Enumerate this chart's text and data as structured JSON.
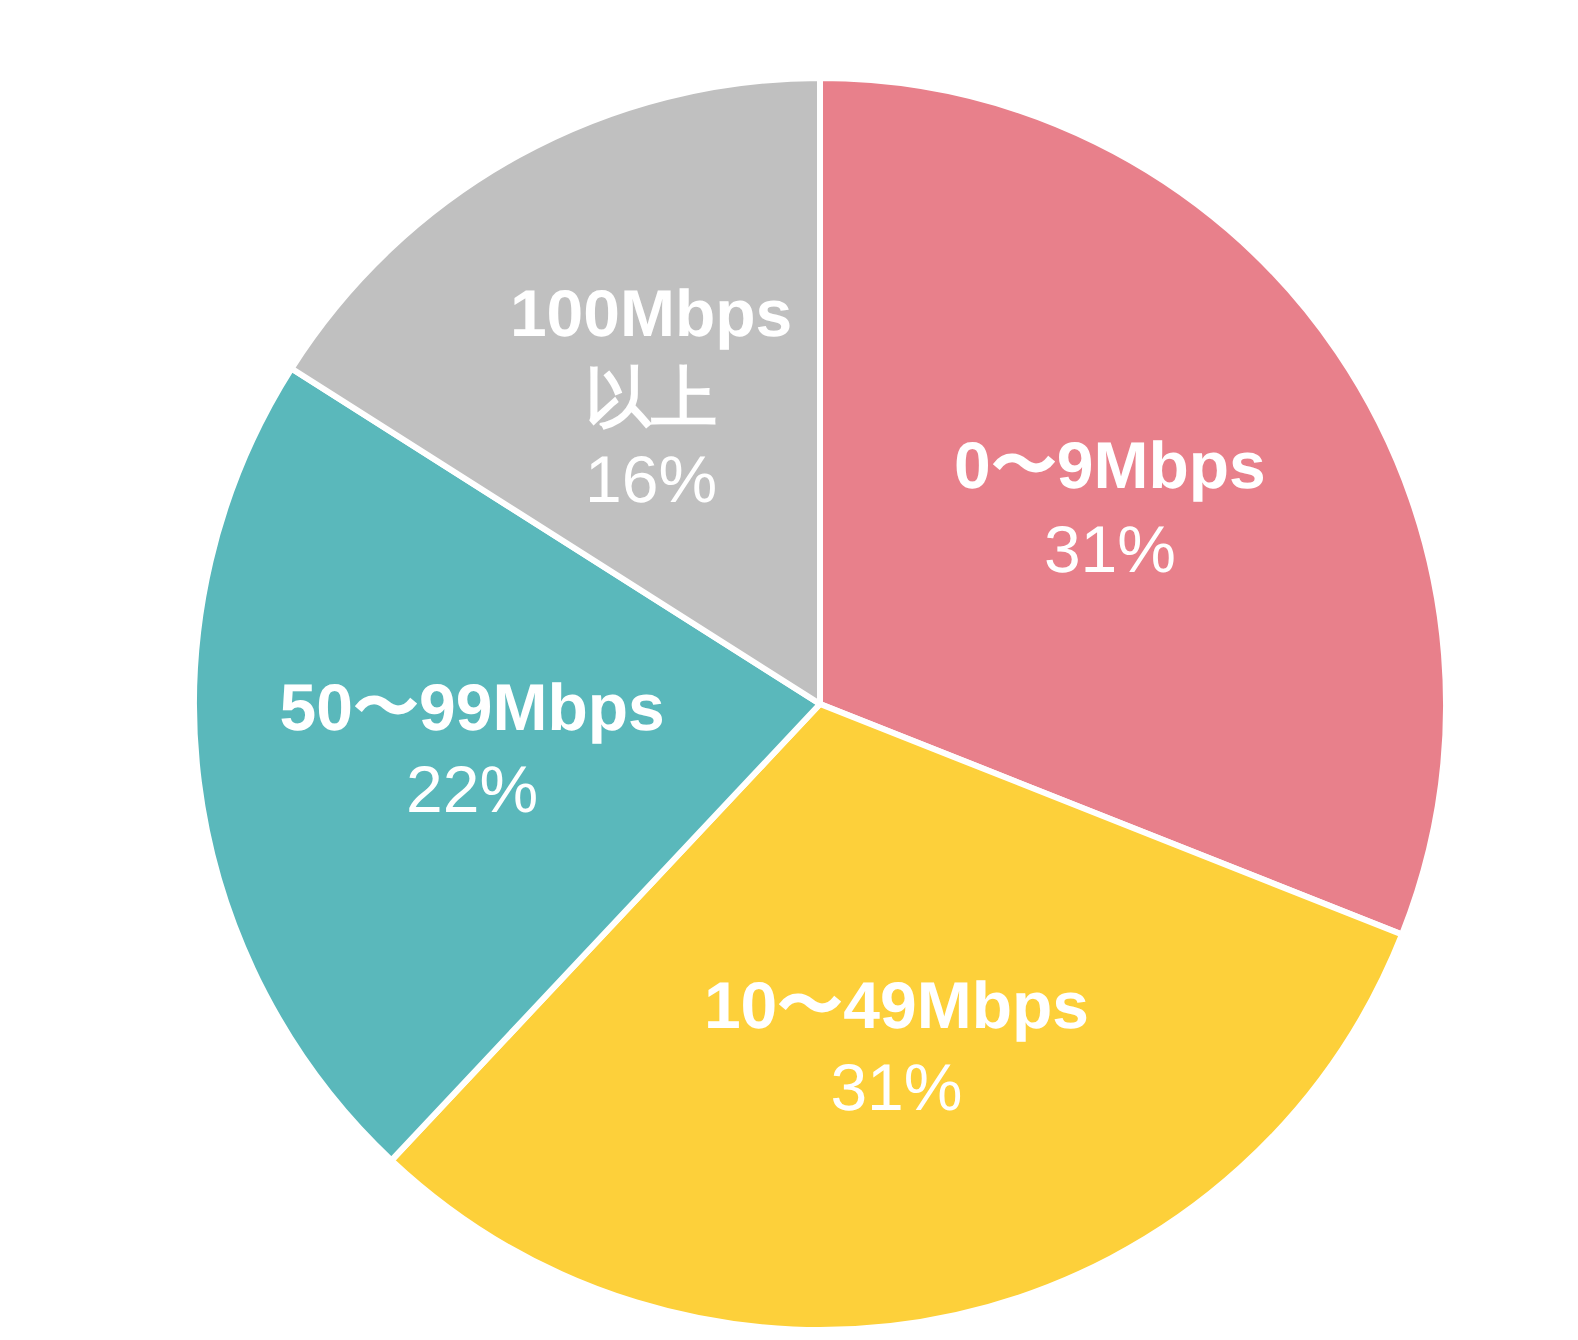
{
  "chart_data": {
    "type": "pie",
    "categories": [
      "0〜9Mbps",
      "10〜49Mbps",
      "50〜99Mbps",
      "100Mbps以上"
    ],
    "values": [
      31,
      31,
      22,
      16
    ],
    "colors": [
      "#e8808b",
      "#fdd03a",
      "#5ab8bb",
      "#c0c0c0"
    ],
    "value_labels": [
      "31%",
      "31%",
      "22%",
      "16%"
    ]
  }
}
